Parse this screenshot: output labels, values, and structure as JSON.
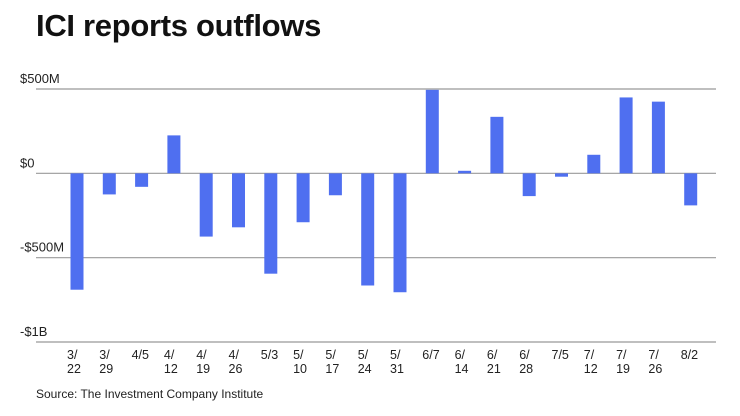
{
  "chart_data": {
    "type": "bar",
    "title": "ICI reports outflows",
    "source": "Source: The Investment Company Institute",
    "xlabel": "",
    "ylabel": "",
    "ylim": [
      -1000,
      500
    ],
    "units": "$M",
    "grid": true,
    "yticks": [
      {
        "value": 500,
        "label": "$500M"
      },
      {
        "value": 0,
        "label": "$0"
      },
      {
        "value": -500,
        "label": "-$500M"
      },
      {
        "value": -1000,
        "label": "-$1B"
      }
    ],
    "categories": [
      [
        "3/",
        "22"
      ],
      [
        "3/",
        "29"
      ],
      [
        "4/5"
      ],
      [
        "4/",
        "12"
      ],
      [
        "4/",
        "19"
      ],
      [
        "4/",
        "26"
      ],
      [
        "5/3"
      ],
      [
        "5/",
        "10"
      ],
      [
        "5/",
        "17"
      ],
      [
        "5/",
        "24"
      ],
      [
        "5/",
        "31"
      ],
      [
        "6/7"
      ],
      [
        "6/",
        "14"
      ],
      [
        "6/",
        "21"
      ],
      [
        "6/",
        "28"
      ],
      [
        "7/5"
      ],
      [
        "7/",
        "12"
      ],
      [
        "7/",
        "19"
      ],
      [
        "7/",
        "26"
      ],
      [
        "8/2"
      ]
    ],
    "values": [
      -690,
      -125,
      -80,
      225,
      -375,
      -320,
      -595,
      -290,
      -130,
      -665,
      -705,
      495,
      15,
      335,
      -135,
      -20,
      110,
      450,
      425,
      -190
    ],
    "colors": {
      "bar": "#4f6ff0",
      "grid": "#999999",
      "text": "#222222"
    }
  }
}
